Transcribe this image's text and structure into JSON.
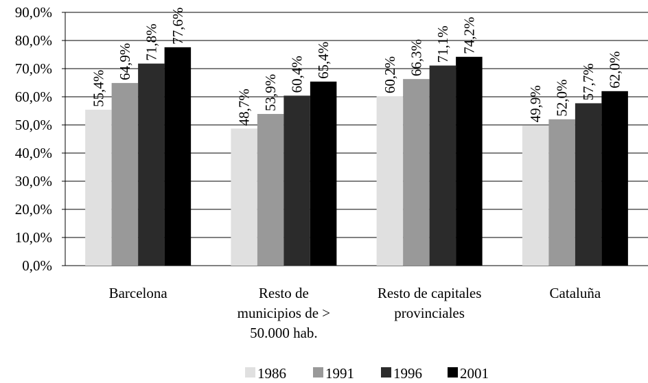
{
  "chart_data": {
    "type": "bar",
    "categories": [
      "Barcelona",
      "Resto de municipios de > 50.000 hab.",
      "Resto de capitales provinciales",
      "Cataluña"
    ],
    "series": [
      {
        "name": "1986",
        "color": "#e0e0e0",
        "values": [
          55.4,
          48.7,
          60.2,
          49.9
        ],
        "value_labels": [
          "55,4%",
          "48,7%",
          "60,2%",
          "49,9%"
        ]
      },
      {
        "name": "1991",
        "color": "#999999",
        "values": [
          64.9,
          53.9,
          66.3,
          52.0
        ],
        "value_labels": [
          "64,9%",
          "53,9%",
          "66,3%",
          "52,0%"
        ]
      },
      {
        "name": "1996",
        "color": "#2b2b2b",
        "values": [
          71.8,
          60.4,
          71.1,
          57.7
        ],
        "value_labels": [
          "71,8%",
          "60,4%",
          "71,1%",
          "57,7%"
        ]
      },
      {
        "name": "2001",
        "color": "#000000",
        "values": [
          77.6,
          65.4,
          74.2,
          62.0
        ],
        "value_labels": [
          "77,6%",
          "65,4%",
          "74,2%",
          "62,0%"
        ]
      }
    ],
    "ylim": [
      0,
      90
    ],
    "yticks": [
      {
        "value": 0,
        "label": "0,0%"
      },
      {
        "value": 10,
        "label": "10,0%"
      },
      {
        "value": 20,
        "label": "20,0%"
      },
      {
        "value": 30,
        "label": "30,0%"
      },
      {
        "value": 40,
        "label": "40,0%"
      },
      {
        "value": 50,
        "label": "50,0%"
      },
      {
        "value": 60,
        "label": "60,0%"
      },
      {
        "value": 70,
        "label": "70,0%"
      },
      {
        "value": 80,
        "label": "80,0%"
      },
      {
        "value": 90,
        "label": "90,0%"
      }
    ],
    "grid": true,
    "legend": "bottom"
  }
}
